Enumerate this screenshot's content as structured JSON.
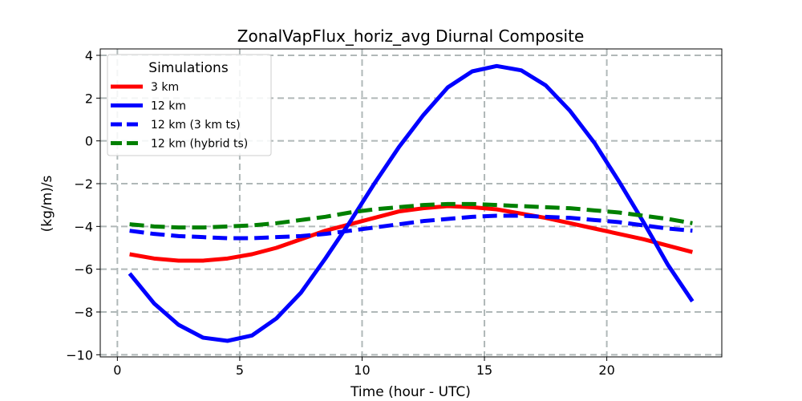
{
  "chart_data": {
    "type": "line",
    "title": "ZonalVapFlux_horiz_avg Diurnal Composite",
    "xlabel": "Time (hour - UTC)",
    "ylabel": "(kg/m)/s",
    "xlim": [
      -0.7,
      24.7
    ],
    "ylim": [
      -10.1,
      4.3
    ],
    "xticks": [
      0,
      5,
      10,
      15,
      20
    ],
    "xtick_labels": [
      "0",
      "5",
      "10",
      "15",
      "20"
    ],
    "yticks": [
      -10,
      -8,
      -6,
      -4,
      -2,
      0,
      2,
      4
    ],
    "ytick_labels": [
      "−10",
      "−8",
      "−6",
      "−4",
      "−2",
      "0",
      "2",
      "4"
    ],
    "grid": true,
    "legend": {
      "title": "Simulations",
      "location": "upper-left"
    },
    "x": [
      0.5,
      1.5,
      2.5,
      3.5,
      4.5,
      5.5,
      6.5,
      7.5,
      8.5,
      9.5,
      10.5,
      11.5,
      12.5,
      13.5,
      14.5,
      15.5,
      16.5,
      17.5,
      18.5,
      19.5,
      20.5,
      21.5,
      22.5,
      23.5
    ],
    "series": [
      {
        "name": "3 km",
        "color": "#ff0000",
        "dashed": false,
        "values": [
          -5.3,
          -5.5,
          -5.6,
          -5.6,
          -5.5,
          -5.3,
          -5.0,
          -4.6,
          -4.2,
          -3.9,
          -3.6,
          -3.3,
          -3.15,
          -3.05,
          -3.1,
          -3.2,
          -3.4,
          -3.6,
          -3.85,
          -4.1,
          -4.35,
          -4.6,
          -4.9,
          -5.2
        ]
      },
      {
        "name": "12 km",
        "color": "#0000ff",
        "dashed": false,
        "values": [
          -6.2,
          -7.6,
          -8.6,
          -9.2,
          -9.35,
          -9.1,
          -8.3,
          -7.1,
          -5.5,
          -3.8,
          -2.0,
          -0.3,
          1.2,
          2.5,
          3.25,
          3.5,
          3.3,
          2.6,
          1.4,
          -0.1,
          -1.9,
          -3.8,
          -5.8,
          -7.5
        ]
      },
      {
        "name": "12 km (3 km ts)",
        "color": "#0000ff",
        "dashed": true,
        "values": [
          -4.2,
          -4.35,
          -4.45,
          -4.5,
          -4.55,
          -4.55,
          -4.5,
          -4.45,
          -4.35,
          -4.2,
          -4.05,
          -3.9,
          -3.75,
          -3.65,
          -3.55,
          -3.5,
          -3.5,
          -3.55,
          -3.6,
          -3.7,
          -3.8,
          -3.95,
          -4.1,
          -4.2
        ]
      },
      {
        "name": "12 km (hybrid ts)",
        "color": "#008000",
        "dashed": true,
        "values": [
          -3.9,
          -4.0,
          -4.05,
          -4.05,
          -4.0,
          -3.95,
          -3.85,
          -3.7,
          -3.55,
          -3.35,
          -3.2,
          -3.1,
          -3.0,
          -2.95,
          -2.95,
          -3.0,
          -3.05,
          -3.1,
          -3.15,
          -3.25,
          -3.35,
          -3.5,
          -3.65,
          -3.85
        ]
      }
    ]
  }
}
